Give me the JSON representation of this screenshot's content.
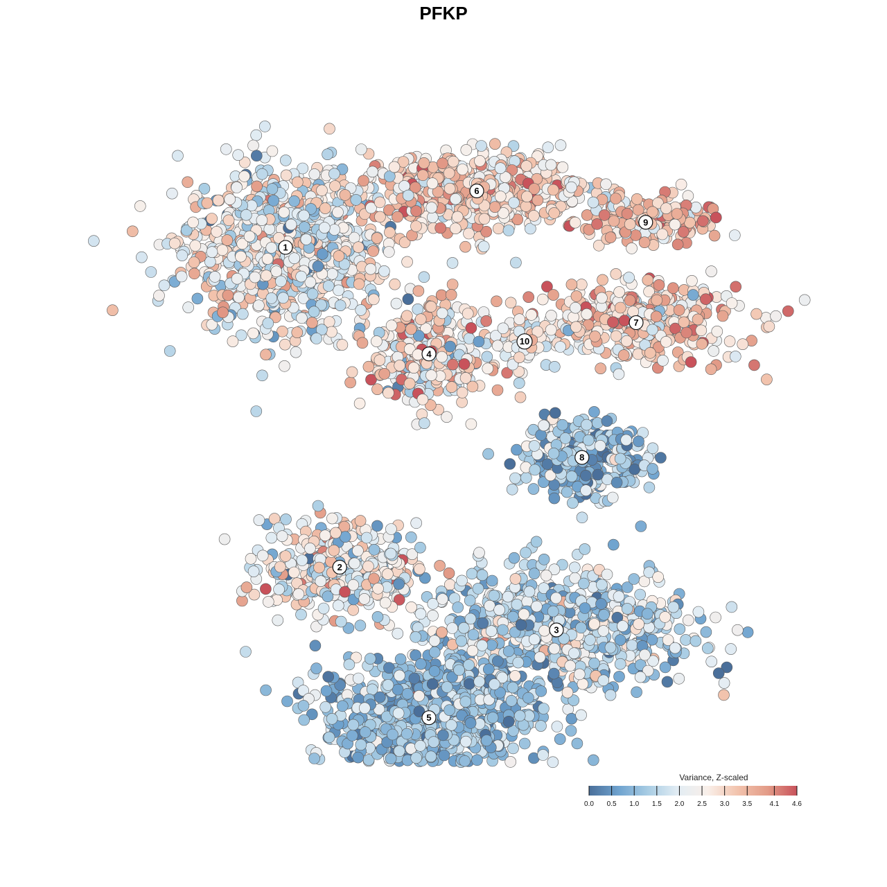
{
  "title": "PFKP",
  "chart_data": {
    "type": "scatter",
    "title": "PFKP",
    "xlabel": "",
    "ylabel": "",
    "grid": false,
    "axes_visible": false,
    "color_scale": {
      "title": "Variance, Z-scaled",
      "min": 0.0,
      "max": 4.6,
      "ticks": [
        "0.0",
        "0.5",
        "1.0",
        "1.5",
        "2.0",
        "2.5",
        "3.0",
        "3.5",
        "4.1",
        "4.6"
      ],
      "colors": [
        "#4a6f9a",
        "#6fa3cf",
        "#a9cde4",
        "#e3edf4",
        "#f9efe9",
        "#f2c3ad",
        "#e39c88",
        "#c8525b"
      ],
      "legend_position": "bottom-right"
    },
    "clusters": [
      {
        "label": "1",
        "cx": -0.55,
        "cy": 0.62,
        "sx": 0.16,
        "sy": 0.13,
        "n": 900,
        "mean": 2.2,
        "sd": 0.8
      },
      {
        "label": "2",
        "cx": -0.38,
        "cy": -0.4,
        "sx": 0.12,
        "sy": 0.07,
        "n": 380,
        "mean": 2.3,
        "sd": 0.9
      },
      {
        "label": "3",
        "cx": 0.3,
        "cy": -0.6,
        "sx": 0.22,
        "sy": 0.1,
        "n": 700,
        "mean": 1.6,
        "sd": 0.8
      },
      {
        "label": "4",
        "cx": -0.1,
        "cy": 0.28,
        "sx": 0.09,
        "sy": 0.08,
        "n": 320,
        "mean": 2.7,
        "sd": 0.9
      },
      {
        "label": "5",
        "cx": -0.1,
        "cy": -0.88,
        "sx": 0.17,
        "sy": 0.1,
        "n": 800,
        "mean": 1.1,
        "sd": 0.6
      },
      {
        "label": "6",
        "cx": 0.05,
        "cy": 0.8,
        "sx": 0.18,
        "sy": 0.06,
        "n": 550,
        "mean": 2.9,
        "sd": 0.7
      },
      {
        "label": "7",
        "cx": 0.55,
        "cy": 0.38,
        "sx": 0.16,
        "sy": 0.06,
        "n": 420,
        "mean": 3.0,
        "sd": 0.8
      },
      {
        "label": "8",
        "cx": 0.38,
        "cy": -0.05,
        "sx": 0.1,
        "sy": 0.06,
        "n": 300,
        "mean": 1.2,
        "sd": 0.7
      },
      {
        "label": "9",
        "cx": 0.58,
        "cy": 0.7,
        "sx": 0.1,
        "sy": 0.04,
        "n": 160,
        "mean": 3.3,
        "sd": 0.7
      },
      {
        "label": "10",
        "cx": 0.2,
        "cy": 0.32,
        "sx": 0.05,
        "sy": 0.04,
        "n": 80,
        "mean": 2.4,
        "sd": 0.6
      }
    ]
  }
}
